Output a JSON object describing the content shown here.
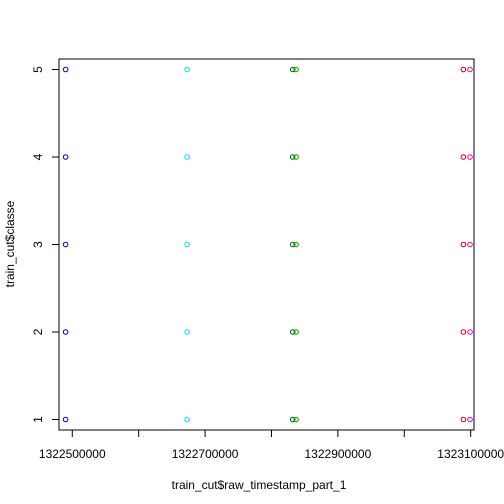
{
  "chart_data": {
    "type": "scatter",
    "title": "",
    "xlabel": "train_cut$raw_timestamp_part_1",
    "ylabel": "train_cut$classe",
    "xlim": [
      1322480000,
      1323105000
    ],
    "ylim": [
      0.88,
      5.12
    ],
    "x_ticks": [
      1322500000,
      1322600000,
      1322700000,
      1322800000,
      1322900000,
      1323000000,
      1323100000
    ],
    "x_tick_labels": [
      "1322500000",
      "",
      "1322700000",
      "",
      "1322900000",
      "",
      "1323100000"
    ],
    "y_ticks": [
      1,
      2,
      3,
      4,
      5
    ],
    "y_tick_labels": [
      "1",
      "2",
      "3",
      "4",
      "5"
    ],
    "grid": false,
    "legend": "none",
    "series": [
      {
        "color": "#0000cd",
        "x": [
          1322490000,
          1322490000,
          1322490000,
          1322490000,
          1322490000
        ],
        "y": [
          1,
          2,
          3,
          4,
          5
        ]
      },
      {
        "color": "#00e5ee",
        "x": [
          1322673000,
          1322673000,
          1322673000,
          1322673000,
          1322673000
        ],
        "y": [
          1,
          2,
          3,
          4,
          5
        ]
      },
      {
        "color": "#006400",
        "x": [
          1322832000,
          1322832000,
          1322832000,
          1322832000,
          1322832000
        ],
        "y": [
          1,
          2,
          3,
          4,
          5
        ]
      },
      {
        "color": "#00a000",
        "x": [
          1322837000,
          1322837000,
          1322837000,
          1322837000,
          1322837000
        ],
        "y": [
          1,
          2,
          3,
          4,
          5
        ]
      },
      {
        "color": "#cd0000",
        "x": [
          1323089000,
          1323089000,
          1323089000,
          1323089000,
          1323089000
        ],
        "y": [
          1,
          2,
          3,
          4,
          5
        ]
      },
      {
        "color": "#ff00aa",
        "x": [
          1323099000,
          1323099000,
          1323099000,
          1323099000,
          1323099000
        ],
        "y": [
          1,
          2,
          3,
          4,
          5
        ]
      }
    ]
  }
}
